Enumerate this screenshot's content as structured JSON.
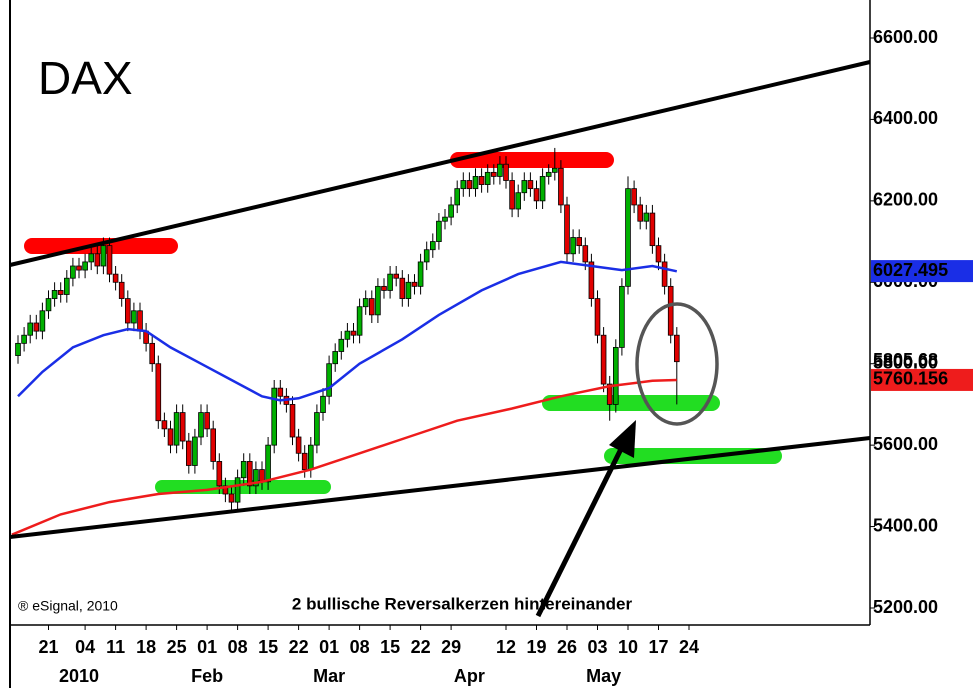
{
  "chart_data": {
    "type": "candlestick",
    "title": "DAX",
    "source": "® eSignal, 2010",
    "annotation": "2 bullische Reversalkerzen hintereinander",
    "up_color": "#00b000",
    "down_color": "#e00000",
    "open": [
      5820,
      5850,
      5870,
      5900,
      5880,
      5930,
      5960,
      5980,
      5970,
      6010,
      6040,
      6030,
      6050,
      6070,
      6040,
      6090,
      6020,
      6000,
      5960,
      5900,
      5930,
      5880,
      5850,
      5800,
      5660,
      5640,
      5600,
      5680,
      5610,
      5550,
      5620,
      5680,
      5640,
      5560,
      5500,
      5480,
      5460,
      5520,
      5560,
      5500,
      5540,
      5510,
      5600,
      5740,
      5720,
      5700,
      5620,
      5580,
      5540,
      5600,
      5680,
      5720,
      5800,
      5830,
      5860,
      5880,
      5870,
      5940,
      5960,
      5920,
      5990,
      5980,
      6020,
      6010,
      5960,
      6000,
      5990,
      6050,
      6080,
      6100,
      6150,
      6160,
      6190,
      6230,
      6250,
      6230,
      6260,
      6240,
      6270,
      6260,
      6290,
      6250,
      6180,
      6220,
      6250,
      6230,
      6200,
      6260,
      6270,
      6280,
      6190,
      6070,
      6110,
      6090,
      6050,
      5960,
      5870,
      5750,
      5700,
      5840,
      5990,
      6230,
      6190,
      6150,
      6170,
      6090,
      6050,
      5990,
      5870
    ],
    "high": [
      5870,
      5890,
      5920,
      5920,
      5950,
      5980,
      6000,
      6000,
      6030,
      6060,
      6060,
      6070,
      6090,
      6090,
      6110,
      6110,
      6040,
      6020,
      5980,
      5950,
      5950,
      5900,
      5870,
      5820,
      5680,
      5660,
      5700,
      5700,
      5630,
      5640,
      5700,
      5700,
      5660,
      5580,
      5520,
      5500,
      5540,
      5580,
      5580,
      5560,
      5560,
      5620,
      5760,
      5760,
      5740,
      5720,
      5640,
      5600,
      5620,
      5700,
      5740,
      5820,
      5850,
      5880,
      5900,
      5900,
      5960,
      5980,
      5980,
      6010,
      6010,
      6040,
      6040,
      6030,
      6020,
      6020,
      6070,
      6100,
      6120,
      6170,
      6180,
      6210,
      6250,
      6270,
      6270,
      6280,
      6280,
      6290,
      6290,
      6310,
      6310,
      6270,
      6240,
      6270,
      6270,
      6250,
      6280,
      6290,
      6330,
      6300,
      6210,
      6130,
      6130,
      6110,
      6070,
      5980,
      5890,
      5770,
      5860,
      6010,
      6260,
      6250,
      6210,
      6190,
      6190,
      6110,
      6070,
      6010,
      5890
    ],
    "low": [
      5800,
      5830,
      5850,
      5860,
      5860,
      5910,
      5940,
      5950,
      5950,
      5990,
      6010,
      6010,
      6030,
      6020,
      6020,
      6000,
      5980,
      5940,
      5880,
      5880,
      5860,
      5830,
      5780,
      5640,
      5620,
      5580,
      5580,
      5590,
      5530,
      5530,
      5600,
      5620,
      5540,
      5480,
      5460,
      5440,
      5440,
      5500,
      5480,
      5480,
      5490,
      5490,
      5580,
      5700,
      5680,
      5600,
      5560,
      5520,
      5520,
      5580,
      5660,
      5700,
      5780,
      5810,
      5840,
      5850,
      5850,
      5920,
      5900,
      5900,
      5960,
      5960,
      5990,
      5940,
      5940,
      5970,
      5970,
      6030,
      6060,
      6080,
      6130,
      6140,
      6170,
      6210,
      6210,
      6210,
      6220,
      6220,
      6240,
      6240,
      6230,
      6160,
      6160,
      6200,
      6210,
      6180,
      6180,
      6240,
      6250,
      6170,
      6050,
      6050,
      6070,
      6030,
      5940,
      5850,
      5730,
      5660,
      5680,
      5820,
      5970,
      6170,
      6130,
      6130,
      6070,
      6030,
      5970,
      5850,
      5700
    ],
    "close": [
      5850,
      5870,
      5900,
      5880,
      5930,
      5960,
      5980,
      5970,
      6010,
      6040,
      6030,
      6050,
      6070,
      6040,
      6090,
      6020,
      6000,
      5960,
      5900,
      5930,
      5880,
      5850,
      5800,
      5660,
      5640,
      5600,
      5680,
      5610,
      5550,
      5620,
      5680,
      5640,
      5560,
      5500,
      5480,
      5460,
      5520,
      5560,
      5500,
      5540,
      5510,
      5600,
      5740,
      5720,
      5700,
      5620,
      5580,
      5540,
      5600,
      5680,
      5720,
      5800,
      5830,
      5860,
      5880,
      5870,
      5940,
      5960,
      5920,
      5990,
      5980,
      6020,
      6010,
      5960,
      6000,
      5990,
      6050,
      6080,
      6100,
      6150,
      6160,
      6190,
      6230,
      6250,
      6230,
      6260,
      6240,
      6270,
      6260,
      6290,
      6250,
      6180,
      6220,
      6250,
      6230,
      6200,
      6260,
      6270,
      6280,
      6190,
      6070,
      6110,
      6090,
      6050,
      5960,
      5870,
      5750,
      5700,
      5840,
      5990,
      6230,
      6190,
      6150,
      6170,
      6090,
      6050,
      5990,
      5870,
      5805
    ],
    "series": [
      {
        "color": "#1a2ee6",
        "x": [
          0,
          4,
          9,
          14,
          18,
          21,
          25,
          30,
          35,
          40,
          43,
          46,
          51,
          56,
          63,
          69,
          76,
          82,
          89,
          94,
          99,
          104,
          108
        ],
        "values": [
          5720,
          5780,
          5840,
          5870,
          5885,
          5880,
          5840,
          5800,
          5760,
          5720,
          5710,
          5715,
          5740,
          5800,
          5860,
          5920,
          5980,
          6020,
          6050,
          6040,
          6030,
          6040,
          6027
        ]
      },
      {
        "color": "#ee1c1c",
        "x": [
          -1,
          7,
          15,
          23,
          31,
          40,
          48,
          56,
          64,
          72,
          81,
          89,
          97,
          104,
          108
        ],
        "values": [
          5380,
          5430,
          5460,
          5480,
          5490,
          5510,
          5540,
          5580,
          5620,
          5660,
          5690,
          5720,
          5745,
          5758,
          5760
        ]
      }
    ],
    "ylim": [
      5200,
      6600
    ],
    "yticks": [
      {
        "value": 5200,
        "label": "5200.00"
      },
      {
        "value": 5400,
        "label": "5400.00"
      },
      {
        "value": 5600,
        "label": "5600.00"
      },
      {
        "value": 5800,
        "label": "5800.00"
      },
      {
        "value": 6000,
        "label": "6000.00"
      },
      {
        "value": 6200,
        "label": "6200.00"
      },
      {
        "value": 6400,
        "label": "6400.00"
      },
      {
        "value": 6600,
        "label": "6600.00"
      }
    ],
    "xticks": [
      {
        "value": 5,
        "label": "21"
      },
      {
        "value": 11,
        "label": "04"
      },
      {
        "value": 16,
        "label": "11"
      },
      {
        "value": 21,
        "label": "18"
      },
      {
        "value": 26,
        "label": "25"
      },
      {
        "value": 31,
        "label": "01"
      },
      {
        "value": 36,
        "label": "08"
      },
      {
        "value": 41,
        "label": "15"
      },
      {
        "value": 46,
        "label": "22"
      },
      {
        "value": 51,
        "label": "01"
      },
      {
        "value": 56,
        "label": "08"
      },
      {
        "value": 61,
        "label": "15"
      },
      {
        "value": 66,
        "label": "22"
      },
      {
        "value": 71,
        "label": "29"
      },
      {
        "value": 80,
        "label": "12"
      },
      {
        "value": 85,
        "label": "19"
      },
      {
        "value": 90,
        "label": "26"
      },
      {
        "value": 95,
        "label": "03"
      },
      {
        "value": 100,
        "label": "10"
      },
      {
        "value": 105,
        "label": "17"
      },
      {
        "value": 110,
        "label": "24"
      }
    ],
    "month_labels": [
      {
        "value": 10,
        "label": "2010"
      },
      {
        "value": 31,
        "label": "Feb"
      },
      {
        "value": 51,
        "label": "Mar"
      },
      {
        "value": 74,
        "label": "Apr"
      },
      {
        "value": 96,
        "label": "May"
      }
    ],
    "price_labels": [
      {
        "value": 6027.495,
        "label": "6027.495",
        "color": "#1a2ee6"
      },
      {
        "value": 5760.156,
        "label": "5760.156",
        "color": "#ee1c1c"
      },
      {
        "value": 5805.68,
        "label": "5805.68",
        "color": "#ee1c1c"
      }
    ]
  }
}
